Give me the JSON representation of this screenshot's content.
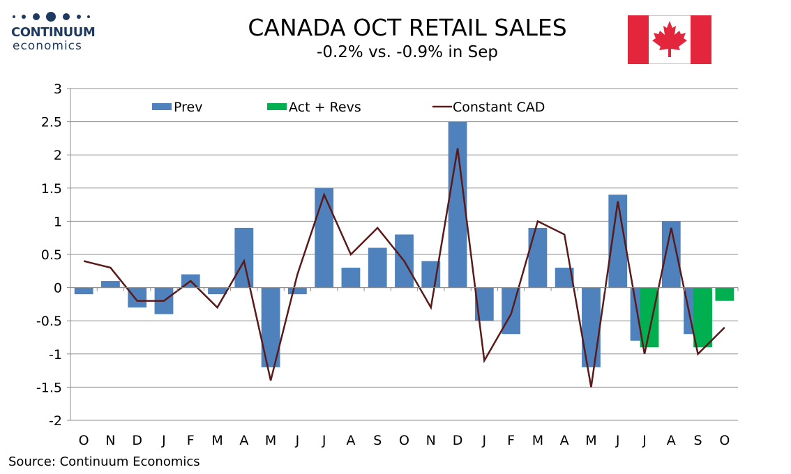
{
  "header": {
    "title": "CANADA OCT RETAIL SALES",
    "subtitle": "-0.2% vs. -0.9% in Sep"
  },
  "logo": {
    "name": "CONTINUUM",
    "sub": "economics"
  },
  "source": "Source: Continuum Economics",
  "colors": {
    "prev": "#4f81bd",
    "act": "#00b050",
    "line": "#5a1a1a",
    "flag_red": "#e3263b"
  },
  "chart_data": {
    "type": "bar",
    "categories": [
      "O",
      "N",
      "D",
      "J",
      "F",
      "M",
      "A",
      "M",
      "J",
      "J",
      "A",
      "S",
      "O",
      "N",
      "D",
      "J",
      "F",
      "M",
      "A",
      "M",
      "J",
      "J",
      "A",
      "S",
      "O"
    ],
    "series": [
      {
        "name": "Prev",
        "kind": "bar",
        "values": [
          -0.1,
          0.1,
          -0.3,
          -0.4,
          0.2,
          -0.1,
          0.9,
          -1.2,
          -0.1,
          1.5,
          0.3,
          0.6,
          0.8,
          0.4,
          2.5,
          -0.5,
          -0.7,
          0.9,
          0.3,
          -1.2,
          1.4,
          -0.8,
          1.0,
          -0.7,
          null
        ]
      },
      {
        "name": "Act + Revs",
        "kind": "bar",
        "values": [
          null,
          null,
          null,
          null,
          null,
          null,
          null,
          null,
          null,
          null,
          null,
          null,
          null,
          null,
          null,
          null,
          null,
          null,
          null,
          null,
          null,
          -0.9,
          null,
          -0.9,
          -0.2
        ]
      },
      {
        "name": "Constant CAD",
        "kind": "line",
        "values": [
          0.4,
          0.3,
          -0.2,
          -0.2,
          0.1,
          -0.3,
          0.4,
          -1.4,
          0.2,
          1.4,
          0.5,
          0.9,
          0.4,
          -0.3,
          2.1,
          -1.1,
          -0.4,
          1.0,
          0.8,
          -1.5,
          1.3,
          -1.0,
          0.9,
          -1.0,
          -0.6
        ]
      }
    ],
    "yticks": [
      "3",
      "2.5",
      "2",
      "1.5",
      "1",
      "0.5",
      "0",
      "-0.5",
      "-1",
      "-1.5",
      "-2"
    ],
    "ylim": [
      -2,
      3
    ],
    "legend": [
      "Prev",
      "Act + Revs",
      "Constant CAD"
    ],
    "grid": true,
    "legend_position": "top-center"
  }
}
